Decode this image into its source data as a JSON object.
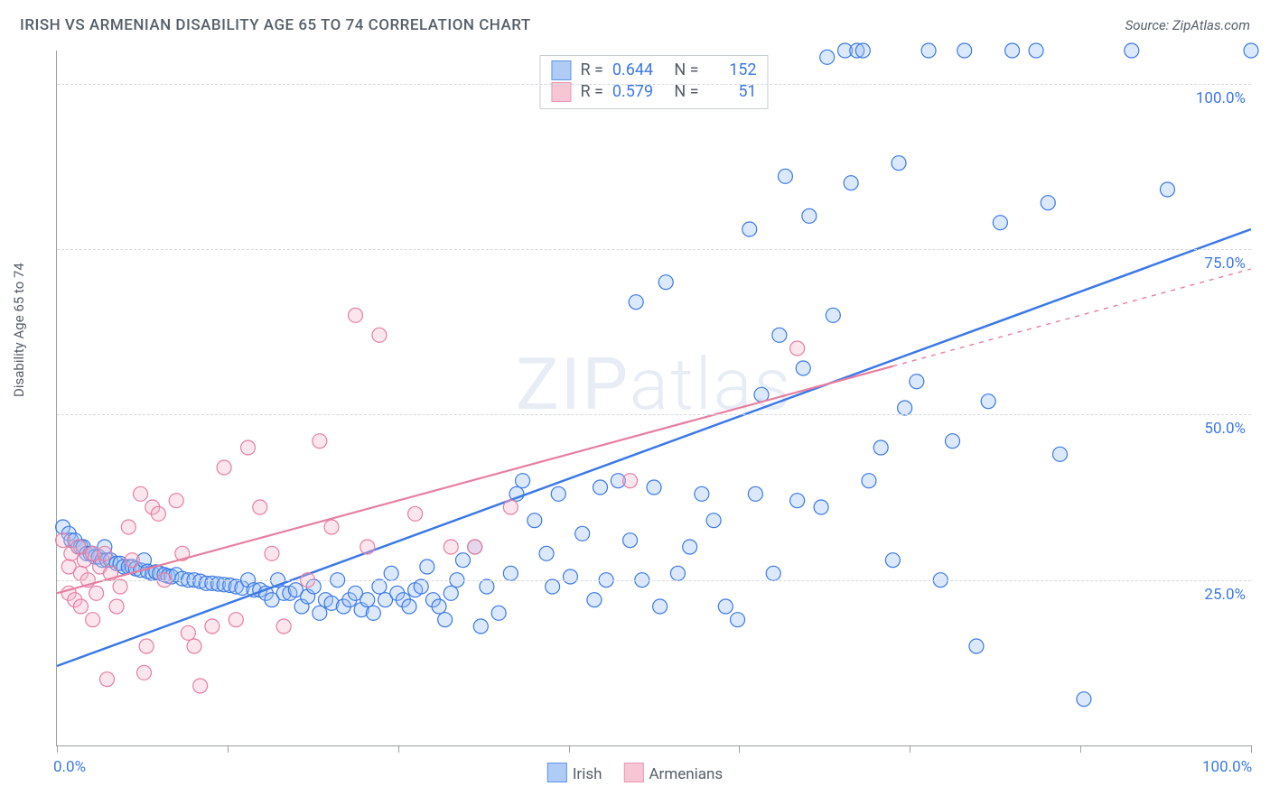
{
  "title": "IRISH VS ARMENIAN DISABILITY AGE 65 TO 74 CORRELATION CHART",
  "source": "Source: ZipAtlas.com",
  "watermark": "ZIPatlas",
  "ylabel": "Disability Age 65 to 74",
  "chart": {
    "type": "scatter",
    "xlim": [
      0,
      100
    ],
    "ylim": [
      0,
      105
    ],
    "x_tick_labels": {
      "0": "0.0%",
      "100": "100.0%"
    },
    "x_ticks": [
      0,
      14.3,
      28.6,
      42.9,
      57.1,
      71.4,
      85.7,
      100
    ],
    "y_gridlines": [
      25,
      50,
      75,
      100
    ],
    "y_tick_labels": {
      "25": "25.0%",
      "50": "50.0%",
      "75": "75.0%",
      "100": "100.0%"
    },
    "background_color": "#ffffff",
    "grid_color": "#d6d9dd",
    "axis_color": "#9aa0a6",
    "marker_radius": 8,
    "marker_stroke_width": 1.2,
    "marker_fill_opacity": 0.35,
    "series": [
      {
        "name": "Irish",
        "color_stroke": "#3b78e7",
        "color_fill": "#9cc0f5",
        "R": "0.644",
        "N": "152",
        "trend": {
          "x1": 0,
          "y1": 12,
          "x2": 100,
          "y2": 78,
          "dash_from_x": null
        },
        "points": [
          [
            0.5,
            33
          ],
          [
            1,
            32
          ],
          [
            1.2,
            31
          ],
          [
            1.5,
            31
          ],
          [
            1.8,
            30
          ],
          [
            2,
            30
          ],
          [
            2.2,
            30
          ],
          [
            2.5,
            29
          ],
          [
            2.8,
            29
          ],
          [
            3,
            29
          ],
          [
            3.2,
            28.5
          ],
          [
            3.5,
            28.5
          ],
          [
            3.8,
            28
          ],
          [
            4,
            30
          ],
          [
            4.2,
            28
          ],
          [
            4.5,
            28
          ],
          [
            5,
            27.5
          ],
          [
            5.3,
            27.5
          ],
          [
            5.6,
            27
          ],
          [
            6,
            27
          ],
          [
            6.3,
            27
          ],
          [
            6.6,
            26.7
          ],
          [
            7,
            26.5
          ],
          [
            7.3,
            28
          ],
          [
            7.6,
            26.3
          ],
          [
            8,
            26
          ],
          [
            8.3,
            26.2
          ],
          [
            8.6,
            26
          ],
          [
            9,
            25.8
          ],
          [
            9.3,
            25.6
          ],
          [
            9.6,
            25.5
          ],
          [
            10,
            25.8
          ],
          [
            10.5,
            25.2
          ],
          [
            11,
            25
          ],
          [
            11.5,
            25
          ],
          [
            12,
            24.8
          ],
          [
            12.5,
            24.5
          ],
          [
            13,
            24.5
          ],
          [
            13.5,
            24.4
          ],
          [
            14,
            24.3
          ],
          [
            14.5,
            24.2
          ],
          [
            15,
            24
          ],
          [
            15.5,
            23.8
          ],
          [
            16,
            25
          ],
          [
            16.5,
            23.5
          ],
          [
            17,
            23.5
          ],
          [
            17.5,
            23
          ],
          [
            18,
            22
          ],
          [
            18.5,
            25
          ],
          [
            19,
            23
          ],
          [
            19.5,
            23
          ],
          [
            20,
            23.5
          ],
          [
            20.5,
            21
          ],
          [
            21,
            22.5
          ],
          [
            21.5,
            24
          ],
          [
            22,
            20
          ],
          [
            22.5,
            22
          ],
          [
            23,
            21.5
          ],
          [
            23.5,
            25
          ],
          [
            24,
            21
          ],
          [
            24.5,
            22
          ],
          [
            25,
            23
          ],
          [
            25.5,
            20.5
          ],
          [
            26,
            22
          ],
          [
            26.5,
            20
          ],
          [
            27,
            24
          ],
          [
            27.5,
            22
          ],
          [
            28,
            26
          ],
          [
            28.5,
            23
          ],
          [
            29,
            22
          ],
          [
            29.5,
            21
          ],
          [
            30,
            23.5
          ],
          [
            30.5,
            24
          ],
          [
            31,
            27
          ],
          [
            31.5,
            22
          ],
          [
            32,
            21
          ],
          [
            32.5,
            19
          ],
          [
            33,
            23
          ],
          [
            33.5,
            25
          ],
          [
            34,
            28
          ],
          [
            35,
            30
          ],
          [
            35.5,
            18
          ],
          [
            36,
            24
          ],
          [
            37,
            20
          ],
          [
            38,
            26
          ],
          [
            38.5,
            38
          ],
          [
            39,
            40
          ],
          [
            40,
            34
          ],
          [
            41,
            29
          ],
          [
            41.5,
            24
          ],
          [
            42,
            38
          ],
          [
            43,
            25.5
          ],
          [
            44,
            32
          ],
          [
            45,
            22
          ],
          [
            45.5,
            39
          ],
          [
            46,
            25
          ],
          [
            47,
            40
          ],
          [
            48,
            31
          ],
          [
            48.5,
            67
          ],
          [
            49,
            25
          ],
          [
            50,
            39
          ],
          [
            50.5,
            21
          ],
          [
            51,
            70
          ],
          [
            52,
            26
          ],
          [
            53,
            30
          ],
          [
            54,
            38
          ],
          [
            55,
            34
          ],
          [
            56,
            21
          ],
          [
            57,
            19
          ],
          [
            58,
            78
          ],
          [
            58.5,
            38
          ],
          [
            59,
            53
          ],
          [
            60,
            26
          ],
          [
            60.5,
            62
          ],
          [
            61,
            86
          ],
          [
            62,
            37
          ],
          [
            62.5,
            57
          ],
          [
            63,
            80
          ],
          [
            64,
            36
          ],
          [
            64.5,
            104
          ],
          [
            65,
            65
          ],
          [
            66,
            105
          ],
          [
            66.5,
            85
          ],
          [
            67,
            105
          ],
          [
            67.5,
            105
          ],
          [
            68,
            40
          ],
          [
            69,
            45
          ],
          [
            70,
            28
          ],
          [
            70.5,
            88
          ],
          [
            71,
            51
          ],
          [
            72,
            55
          ],
          [
            73,
            105
          ],
          [
            74,
            25
          ],
          [
            75,
            46
          ],
          [
            76,
            105
          ],
          [
            77,
            15
          ],
          [
            78,
            52
          ],
          [
            79,
            79
          ],
          [
            80,
            105
          ],
          [
            82,
            105
          ],
          [
            83,
            82
          ],
          [
            84,
            44
          ],
          [
            86,
            7
          ],
          [
            90,
            105
          ],
          [
            93,
            84
          ],
          [
            100,
            105
          ]
        ]
      },
      {
        "name": "Armenians",
        "color_stroke": "#e77ea0",
        "color_fill": "#f4b8cb",
        "R": "0.579",
        "N": "51",
        "trend": {
          "x1": 0,
          "y1": 23,
          "x2": 100,
          "y2": 72,
          "dash_from_x": 70
        },
        "points": [
          [
            0.5,
            31
          ],
          [
            1,
            27
          ],
          [
            1,
            23
          ],
          [
            1.2,
            29
          ],
          [
            1.5,
            22
          ],
          [
            1.8,
            30
          ],
          [
            2,
            26
          ],
          [
            2,
            21
          ],
          [
            2.3,
            28
          ],
          [
            2.6,
            25
          ],
          [
            3,
            29
          ],
          [
            3,
            19
          ],
          [
            3.3,
            23
          ],
          [
            3.6,
            27
          ],
          [
            4,
            29
          ],
          [
            4.2,
            10
          ],
          [
            4.5,
            26
          ],
          [
            5,
            21
          ],
          [
            5.3,
            24
          ],
          [
            6,
            33
          ],
          [
            6.3,
            28
          ],
          [
            7,
            38
          ],
          [
            7.3,
            11
          ],
          [
            7.5,
            15
          ],
          [
            8,
            36
          ],
          [
            8.5,
            35
          ],
          [
            9,
            25
          ],
          [
            10,
            37
          ],
          [
            10.5,
            29
          ],
          [
            11,
            17
          ],
          [
            11.5,
            15
          ],
          [
            12,
            9
          ],
          [
            13,
            18
          ],
          [
            14,
            42
          ],
          [
            15,
            19
          ],
          [
            16,
            45
          ],
          [
            17,
            36
          ],
          [
            18,
            29
          ],
          [
            19,
            18
          ],
          [
            21,
            25
          ],
          [
            22,
            46
          ],
          [
            23,
            33
          ],
          [
            25,
            65
          ],
          [
            26,
            30
          ],
          [
            27,
            62
          ],
          [
            30,
            35
          ],
          [
            33,
            30
          ],
          [
            35,
            30
          ],
          [
            38,
            36
          ],
          [
            48,
            40
          ],
          [
            62,
            60
          ]
        ]
      }
    ]
  },
  "legend_bottom": [
    {
      "label": "Irish",
      "stroke": "#3b78e7",
      "fill": "#9cc0f5"
    },
    {
      "label": "Armenians",
      "stroke": "#e77ea0",
      "fill": "#f4b8cb"
    }
  ]
}
